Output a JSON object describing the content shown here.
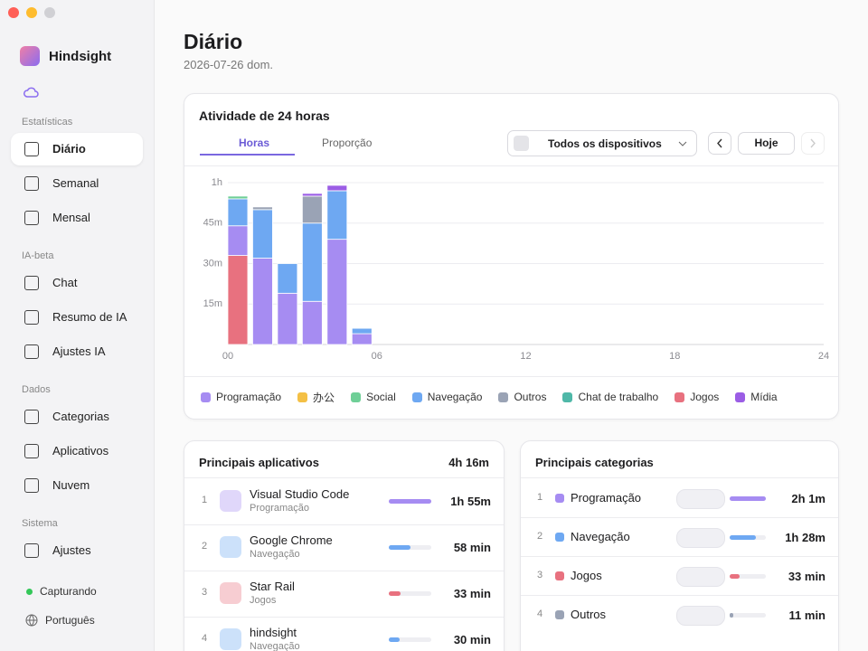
{
  "sidebar": {
    "app_name": "Hindsight",
    "sections": [
      {
        "title": "Estatísticas",
        "items": [
          "Diário",
          "Semanal",
          "Mensal"
        ]
      },
      {
        "title": "IA-beta",
        "items": [
          "Chat",
          "Resumo de IA",
          "Ajustes IA"
        ]
      },
      {
        "title": "Dados",
        "items": [
          "Categorias",
          "Aplicativos",
          "Nuvem"
        ]
      },
      {
        "title": "Sistema",
        "items": [
          "Ajustes"
        ]
      }
    ],
    "status": "Capturando",
    "language": "Português"
  },
  "header": {
    "title": "Diário",
    "date": "2026-07-26 dom."
  },
  "activity_panel": {
    "tabs": [
      "Horas",
      "Proporção"
    ],
    "device_filter": "Todos os dispositivos",
    "today_button": "Hoje"
  },
  "chart_data": {
    "type": "bar",
    "stacked": true,
    "title": "Atividade de 24 horas",
    "x": [
      0,
      1,
      2,
      3,
      4,
      5
    ],
    "xlim": [
      0,
      24
    ],
    "xticks": [
      {
        "value": 0,
        "label": "00"
      },
      {
        "value": 6,
        "label": "06"
      },
      {
        "value": 12,
        "label": "12"
      },
      {
        "value": 18,
        "label": "18"
      },
      {
        "value": 24,
        "label": "24"
      }
    ],
    "ylim": [
      0,
      60
    ],
    "yticks": [
      {
        "value": 15,
        "label": "15m"
      },
      {
        "value": 30,
        "label": "30m"
      },
      {
        "value": 45,
        "label": "45m"
      },
      {
        "value": 60,
        "label": "1h"
      }
    ],
    "grid": true,
    "series": [
      {
        "name": "Programação",
        "color": "#a68cf2",
        "values": [
          11,
          32,
          19,
          16,
          39,
          4
        ]
      },
      {
        "name": "办公",
        "color": "#f4c045",
        "values": [
          0,
          0,
          0,
          0,
          0,
          0
        ]
      },
      {
        "name": "Social",
        "color": "#6fcf97",
        "values": [
          1,
          0,
          0,
          0,
          0,
          0
        ]
      },
      {
        "name": "Navegação",
        "color": "#6ea8f2",
        "values": [
          10,
          18,
          11,
          29,
          18,
          2
        ]
      },
      {
        "name": "Outros",
        "color": "#9aa3b5",
        "values": [
          0,
          1,
          0,
          10,
          0,
          0
        ]
      },
      {
        "name": "Chat de trabalho",
        "color": "#4fb8a8",
        "values": [
          0,
          0,
          0,
          0,
          0,
          0
        ]
      },
      {
        "name": "Jogos",
        "color": "#e8717f",
        "values": [
          33,
          0,
          0,
          0,
          0,
          0
        ]
      },
      {
        "name": "Mídia",
        "color": "#9b5de5",
        "values": [
          0,
          0,
          0,
          1,
          2,
          0
        ]
      }
    ]
  },
  "top_apps": {
    "title": "Principais aplicativos",
    "total": "4h 16m",
    "rows": [
      {
        "rank": 1,
        "name": "Visual Studio Code",
        "category": "Programação",
        "duration": "1h 55m",
        "minutes": 115,
        "color": "#a68cf2"
      },
      {
        "rank": 2,
        "name": "Google Chrome",
        "category": "Navegação",
        "duration": "58 min",
        "minutes": 58,
        "color": "#6ea8f2"
      },
      {
        "rank": 3,
        "name": "Star Rail",
        "category": "Jogos",
        "duration": "33 min",
        "minutes": 33,
        "color": "#e8717f"
      },
      {
        "rank": 4,
        "name": "hindsight",
        "category": "Navegação",
        "duration": "30 min",
        "minutes": 30,
        "color": "#6ea8f2"
      }
    ]
  },
  "top_categories": {
    "title": "Principais categorias",
    "rows": [
      {
        "rank": 1,
        "name": "Programação",
        "duration": "2h 1m",
        "minutes": 121,
        "color": "#a68cf2"
      },
      {
        "rank": 2,
        "name": "Navegação",
        "duration": "1h 28m",
        "minutes": 88,
        "color": "#6ea8f2"
      },
      {
        "rank": 3,
        "name": "Jogos",
        "duration": "33 min",
        "minutes": 33,
        "color": "#e8717f"
      },
      {
        "rank": 4,
        "name": "Outros",
        "duration": "11 min",
        "minutes": 11,
        "color": "#9aa3b5"
      }
    ]
  }
}
